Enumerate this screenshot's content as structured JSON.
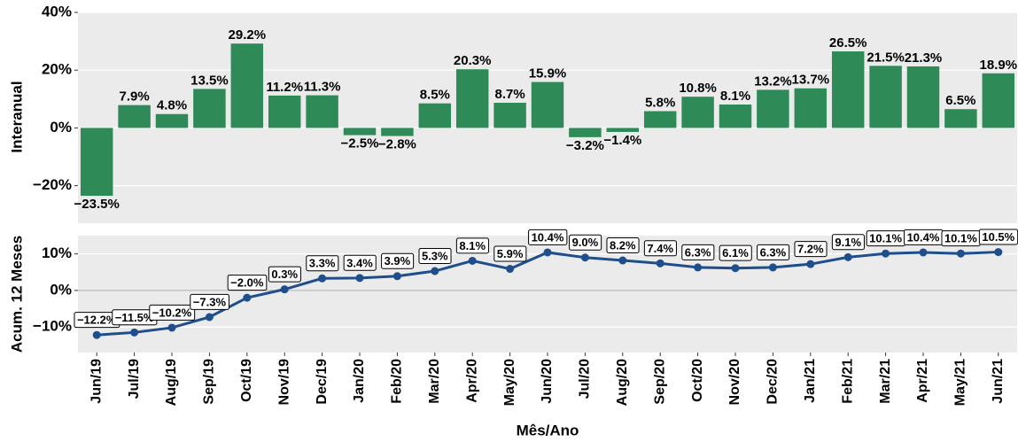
{
  "chart_data": [
    {
      "type": "bar",
      "y_label": "Interanual",
      "color": "#2e8b57",
      "categories": [
        "Jun/19",
        "Jul/19",
        "Aug/19",
        "Sep/19",
        "Oct/19",
        "Nov/19",
        "Dec/19",
        "Jan/20",
        "Feb/20",
        "Mar/20",
        "Apr/20",
        "May/20",
        "Jun/20",
        "Jul/20",
        "Aug/20",
        "Sep/20",
        "Oct/20",
        "Nov/20",
        "Dec/20",
        "Jan/21",
        "Feb/21",
        "Mar/21",
        "Apr/21",
        "May/21",
        "Jun/21"
      ],
      "values": [
        -23.5,
        7.9,
        4.8,
        13.5,
        29.2,
        11.2,
        11.3,
        -2.5,
        -2.8,
        8.5,
        20.3,
        8.7,
        15.9,
        -3.2,
        -1.4,
        5.8,
        10.8,
        8.1,
        13.2,
        13.7,
        26.5,
        21.5,
        21.3,
        6.5,
        18.9
      ],
      "value_labels": [
        "−23.5%",
        "7.9%",
        "4.8%",
        "13.5%",
        "29.2%",
        "11.2%",
        "11.3%",
        "−2.5%",
        "−2.8%",
        "8.5%",
        "20.3%",
        "8.7%",
        "15.9%",
        "−3.2%",
        "−1.4%",
        "5.8%",
        "10.8%",
        "8.1%",
        "13.2%",
        "13.7%",
        "26.5%",
        "21.5%",
        "21.3%",
        "6.5%",
        "18.9%"
      ],
      "ylim": [
        -33,
        40
      ],
      "yticks": [
        {
          "value": -20,
          "label": "−20%"
        },
        {
          "value": 0,
          "label": "0%"
        },
        {
          "value": 20,
          "label": "20%"
        },
        {
          "value": 40,
          "label": "40%"
        }
      ],
      "grid": true
    },
    {
      "type": "line",
      "y_label": "Acum. 12 Meses",
      "x_label": "Mês/Ano",
      "color": "#1f4e8c",
      "categories": [
        "Jun/19",
        "Jul/19",
        "Aug/19",
        "Sep/19",
        "Oct/19",
        "Nov/19",
        "Dec/19",
        "Jan/20",
        "Feb/20",
        "Mar/20",
        "Apr/20",
        "May/20",
        "Jun/20",
        "Jul/20",
        "Aug/20",
        "Sep/20",
        "Oct/20",
        "Nov/20",
        "Dec/20",
        "Jan/21",
        "Feb/21",
        "Mar/21",
        "Apr/21",
        "May/21",
        "Jun/21"
      ],
      "values": [
        -12.2,
        -11.5,
        -10.2,
        -7.3,
        -2.0,
        0.3,
        3.3,
        3.4,
        3.9,
        5.3,
        8.1,
        5.9,
        10.4,
        9.0,
        8.2,
        7.4,
        6.3,
        6.1,
        6.3,
        7.2,
        9.1,
        10.1,
        10.4,
        10.1,
        10.5
      ],
      "value_labels": [
        "−12.2%",
        "−11.5%",
        "−10.2%",
        "−7.3%",
        "−2.0%",
        "0.3%",
        "3.3%",
        "3.4%",
        "3.9%",
        "5.3%",
        "8.1%",
        "5.9%",
        "10.4%",
        "9.0%",
        "8.2%",
        "7.4%",
        "6.3%",
        "6.1%",
        "6.3%",
        "7.2%",
        "9.1%",
        "10.1%",
        "10.4%",
        "10.1%",
        "10.5%"
      ],
      "ylim": [
        -17,
        15
      ],
      "yticks": [
        {
          "value": -10,
          "label": "−10%"
        },
        {
          "value": 0,
          "label": "0%"
        },
        {
          "value": 10,
          "label": "10%"
        }
      ],
      "reference_line": 0,
      "grid": true
    }
  ]
}
